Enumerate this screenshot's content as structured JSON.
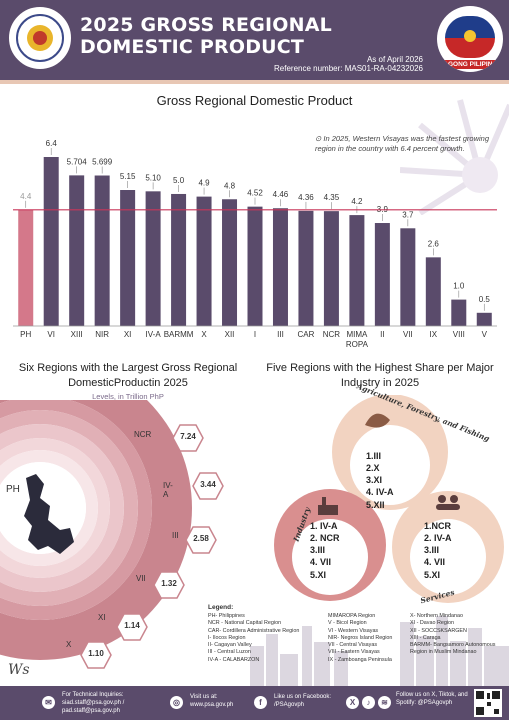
{
  "header": {
    "title": "2025 GROSS REGIONAL DOMESTIC PRODUCT",
    "as_of": "As of April 2026",
    "reference": "Reference number: MAS01-RA-04232026",
    "bp_label": "BAGONG PILIPINAS"
  },
  "colors": {
    "header": "#5a4b6b",
    "bar": "#5a4b6b",
    "ph_bar": "#d4788a",
    "ref_line": "#c8365a",
    "accent": "#e8c7b4"
  },
  "note": "In 2025, Western Visayas was the fastest growing region in the country with 6.4 percent growth.",
  "chart_data": [
    {
      "type": "bar",
      "title": "Gross Regional Domestic Product",
      "categories": [
        "PH",
        "VI",
        "XIII",
        "NIR",
        "XI",
        "IV-A",
        "BARMM",
        "X",
        "XII",
        "I",
        "III",
        "CAR",
        "NCR",
        "MIMA ROPA",
        "II",
        "VII",
        "IX",
        "VIII",
        "V"
      ],
      "values": [
        4.4,
        6.4,
        5.704,
        5.699,
        5.15,
        5.1,
        5.0,
        4.9,
        4.8,
        4.52,
        4.46,
        4.36,
        4.35,
        4.2,
        3.9,
        3.7,
        2.6,
        1.0,
        0.5
      ],
      "value_labels": [
        "4.4",
        "6.4",
        "5.704",
        "5.699",
        "5.15",
        "5.10",
        "5.0",
        "4.9",
        "4.8",
        "4.52",
        "4.46",
        "4.36",
        "4.35",
        "4.2",
        "3.9",
        "3.7",
        "2.6",
        "1.0",
        "0.5"
      ],
      "reference_line": 4.4,
      "highlight": "PH",
      "ylim": [
        0,
        6.4
      ],
      "grid": false
    },
    {
      "type": "pie",
      "title": "Six Regions with the Largest Gross Regional DomesticProductin 2025",
      "subtitle": "Levels, in Trillion PhP",
      "center_label": "PH",
      "categories": [
        "NCR",
        "IV-A",
        "III",
        "VII",
        "XI",
        "X"
      ],
      "values": [
        7.24,
        3.44,
        2.58,
        1.32,
        1.14,
        1.1
      ],
      "value_labels": [
        "7.24",
        "3.44",
        "2.58",
        "1.32",
        "1.14",
        "1.10"
      ]
    }
  ],
  "industry": {
    "title": "Five Regions with the Highest Share per Major Industry in 2025",
    "agriculture": {
      "title": "Agriculture, Forestry, and Fishing",
      "items": [
        "1.III",
        "2.X",
        "3.XI",
        "4. IV-A",
        "5.XII"
      ]
    },
    "industry": {
      "title": "Industry",
      "items": [
        "1. IV-A",
        "2. NCR",
        "3.III",
        "4. VII",
        "5.XI"
      ]
    },
    "services": {
      "title": "Services",
      "items": [
        "1.NCR",
        "2. IV-A",
        "3.III",
        "4. VII",
        "5.XI"
      ]
    }
  },
  "legend": {
    "title": "Legend:",
    "col1": [
      "PH- Philippines",
      "NCR - National Capital Region",
      "CAR- Cordillera Administrative Region",
      "I- Ilocos Region",
      "II- Cagayan Valley",
      "III - Central Luzon",
      "IV-A - CALABARZON"
    ],
    "col2": [
      "MIMAROPA Region",
      "V - Bicol Region",
      "VI - Western Visayas",
      "NIR- Negros Island Region",
      "VII - Central Visayas",
      "VIII - Eastern Visayas",
      "IX - Zamboanga Peninsula"
    ],
    "col3": [
      "X- Northern Mindanao",
      "XI - Davao Region",
      "XII - SOCCSKSARGEN",
      "XIII - Caraga",
      "BARMM- Bangsamoro Autonomous Region in Muslim Mindanao"
    ]
  },
  "footer": {
    "inquiries_label": "For Technical Inquiries:",
    "emails": "siad.staff@psa.gov.ph / pad.staff@psa.gov.ph",
    "visit_label": "Visit us at:",
    "website": "www.psa.gov.ph",
    "facebook_label": "Like us on Facebook:",
    "facebook": "/PSAgovph",
    "follow": "Follow us on X, Tiktok, and Spotify: @PSAgovph"
  }
}
